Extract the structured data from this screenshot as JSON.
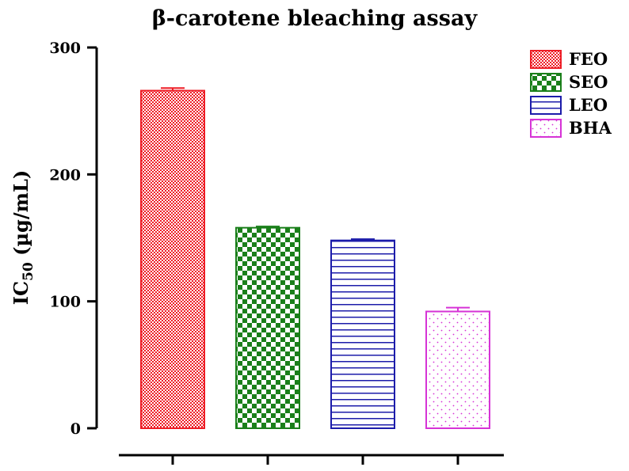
{
  "chart_data": {
    "type": "bar",
    "title": "β-carotene bleaching assay",
    "xlabel": "",
    "ylabel": "IC50 (µg/mL)",
    "ylabel_parts": {
      "main": "IC",
      "sub": "50",
      "rest": " (µg/mL)"
    },
    "ylim": [
      0,
      300
    ],
    "yticks": [
      0,
      100,
      200,
      300
    ],
    "ytick_labels": [
      "0",
      "100",
      "200",
      "300"
    ],
    "categories": [
      "FEO",
      "SEO",
      "LEO",
      "BHA"
    ],
    "values": [
      266,
      158,
      148,
      92
    ],
    "errors": [
      2,
      1,
      1,
      3
    ],
    "colors": [
      "#ee1c25",
      "#1a7f1a",
      "#1c1caa",
      "#d633d6"
    ],
    "patterns": [
      "fine-checker",
      "checker",
      "horizontal-lines",
      "dots"
    ],
    "legend": {
      "position": "top-right",
      "entries": [
        "FEO",
        "SEO",
        "LEO",
        "BHA"
      ]
    },
    "grid": false
  }
}
